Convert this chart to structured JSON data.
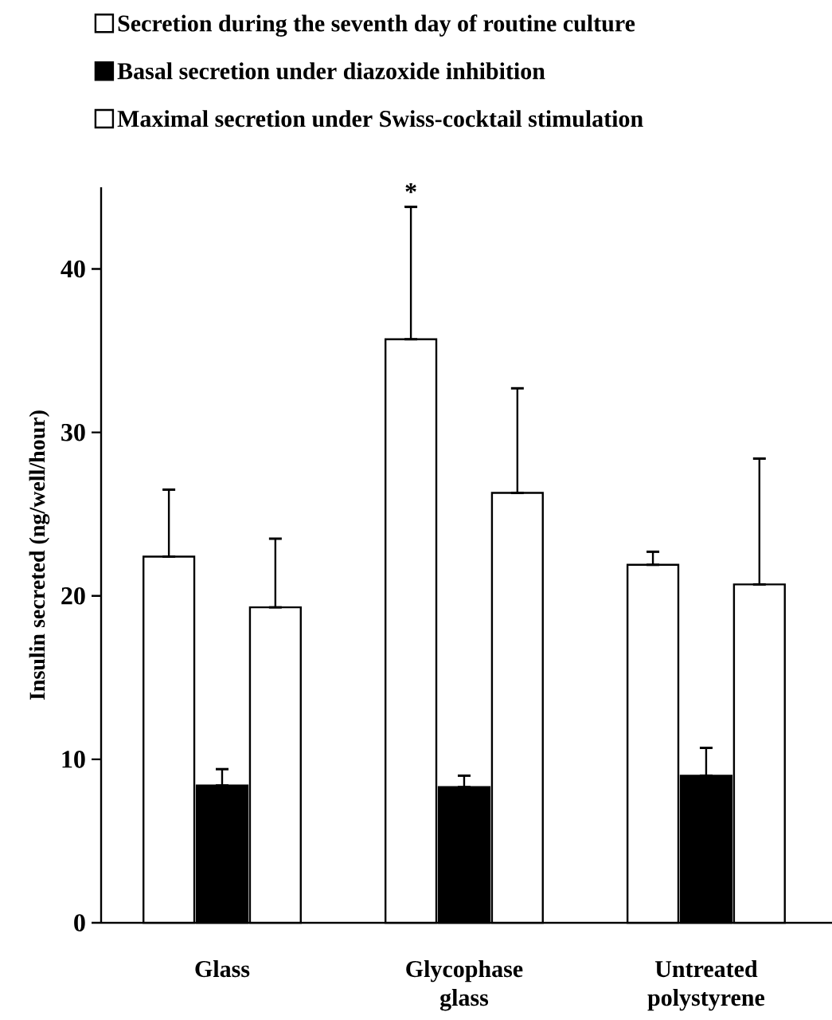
{
  "chart_data": {
    "type": "bar",
    "ylabel": "Insulin secreted (ng/well/hour)",
    "categories": [
      "Glass",
      "Glycophase glass",
      "Untreated polystyrene"
    ],
    "series": [
      {
        "name": "Secretion during the seventh day of routine culture",
        "color": "#ffffff",
        "values": [
          22.4,
          35.7,
          21.9
        ],
        "errors": [
          [
            22.4,
            26.5
          ],
          [
            35.7,
            43.8
          ],
          [
            21.9,
            22.7
          ]
        ]
      },
      {
        "name": "Basal secretion under diazoxide inhibition",
        "color": "#000000",
        "values": [
          8.4,
          8.3,
          9.0
        ],
        "errors": [
          [
            8.4,
            9.4
          ],
          [
            8.3,
            9.0
          ],
          [
            9.0,
            10.7
          ]
        ]
      },
      {
        "name": "Maximal secretion under Swiss-cocktail stimulation",
        "color": "#ffffff",
        "values": [
          19.3,
          26.3,
          20.7
        ],
        "errors": [
          [
            19.3,
            23.5
          ],
          [
            26.3,
            32.7
          ],
          [
            20.7,
            28.4
          ]
        ]
      }
    ],
    "annotations": [
      "*"
    ],
    "ylim": [
      0,
      45
    ],
    "yticks": [
      0,
      10,
      20,
      30,
      40
    ],
    "legend": "top",
    "grid": false
  }
}
